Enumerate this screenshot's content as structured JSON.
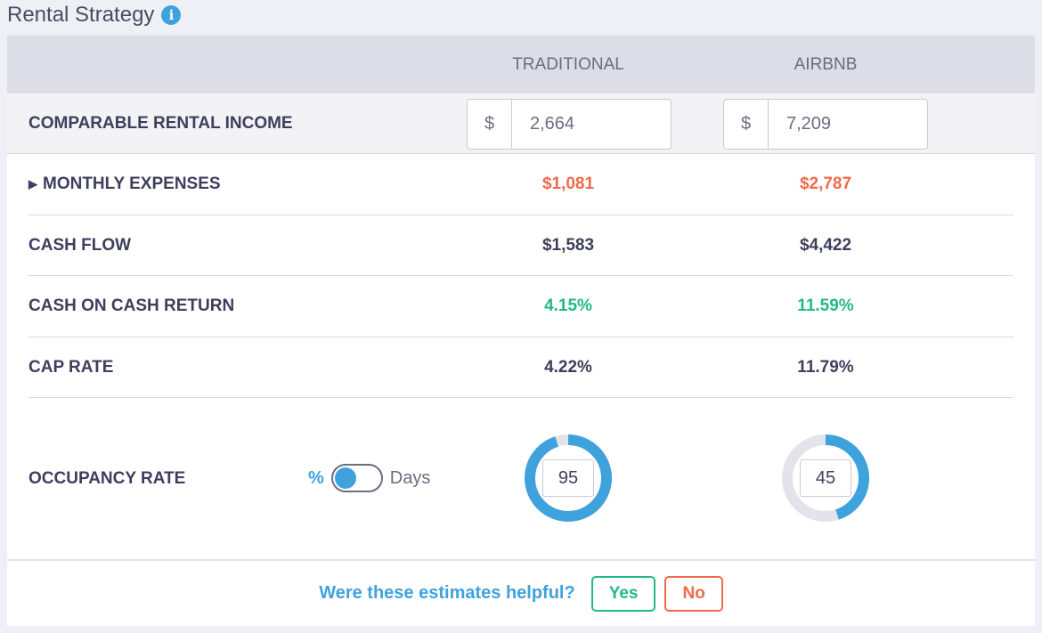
{
  "title": "Rental Strategy",
  "columns": {
    "traditional": "TRADITIONAL",
    "airbnb": "AIRBNB"
  },
  "income": {
    "label": "COMPARABLE RENTAL INCOME",
    "currency": "$",
    "traditional": "2,664",
    "airbnb": "7,209"
  },
  "rows": [
    {
      "label": "MONTHLY EXPENSES",
      "traditional": "$1,081",
      "airbnb": "$2,787",
      "color": "#f06a4a",
      "expandable": true
    },
    {
      "label": "CASH FLOW",
      "traditional": "$1,583",
      "airbnb": "$4,422",
      "color": "#3d3f5c"
    },
    {
      "label": "CASH ON CASH RETURN",
      "traditional": "4.15%",
      "airbnb": "11.59%",
      "color": "#22b88a"
    },
    {
      "label": "CAP RATE",
      "traditional": "4.22%",
      "airbnb": "11.79%",
      "color": "#3d3f5c"
    }
  ],
  "occupancy": {
    "label": "OCCUPANCY RATE",
    "toggle_left": "%",
    "toggle_right": "Days",
    "traditional": "95",
    "airbnb": "45",
    "ring_color": "#3fa2dd",
    "track_color": "#e3e4ea"
  },
  "feedback": {
    "question": "Were these estimates helpful?",
    "yes": "Yes",
    "no": "No"
  }
}
